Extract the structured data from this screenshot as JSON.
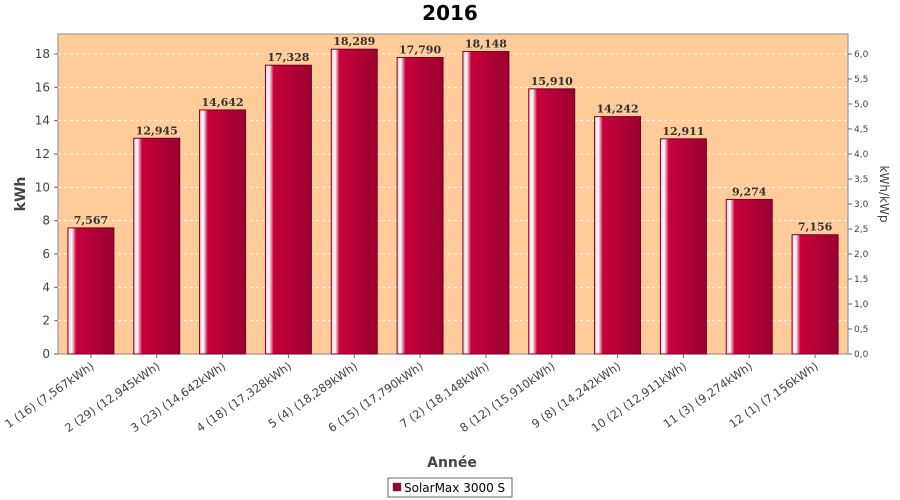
{
  "chart_data": {
    "type": "bar",
    "title": "2016",
    "xlabel": "Année",
    "ylabel": "kWh",
    "ylabel_right": "kWh/kWp",
    "ylim": [
      0,
      19.2
    ],
    "ylim_right": [
      0,
      6.4
    ],
    "yticks": [
      "0",
      "2",
      "4",
      "6",
      "8",
      "10",
      "12",
      "14",
      "16",
      "18"
    ],
    "yticks_right": [
      "0,0",
      "0,5",
      "1,0",
      "1,5",
      "2,0",
      "2,5",
      "3,0",
      "3,5",
      "4,0",
      "4,5",
      "5,0",
      "5,5",
      "6,0"
    ],
    "categories": [
      "1 (16)  (7,567kWh)",
      "2 (29)  (12,945kWh)",
      "3 (23)  (14,642kWh)",
      "4 (18)  (17,328kWh)",
      "5 (4)  (18,289kWh)",
      "6 (15)  (17,790kWh)",
      "7 (2)  (18,148kWh)",
      "8 (12)  (15,910kWh)",
      "9 (8)  (14,242kWh)",
      "10 (2)  (12,911kWh)",
      "11 (3)  (9,274kWh)",
      "12 (1)  (7,156kWh)"
    ],
    "series": [
      {
        "name": "SolarMax 3000 S",
        "values": [
          7.567,
          12.945,
          14.642,
          17.328,
          18.289,
          17.79,
          18.148,
          15.91,
          14.242,
          12.911,
          9.274,
          7.156
        ],
        "data_labels": [
          "7,567",
          "12,945",
          "14,642",
          "17,328",
          "18,289",
          "17,790",
          "18,148",
          "15,910",
          "14,242",
          "12,911",
          "9,274",
          "7,156"
        ],
        "color": "#c8003a"
      }
    ],
    "plot_background": "#ffcc99",
    "grid": true,
    "legend_position": "bottom-center"
  }
}
